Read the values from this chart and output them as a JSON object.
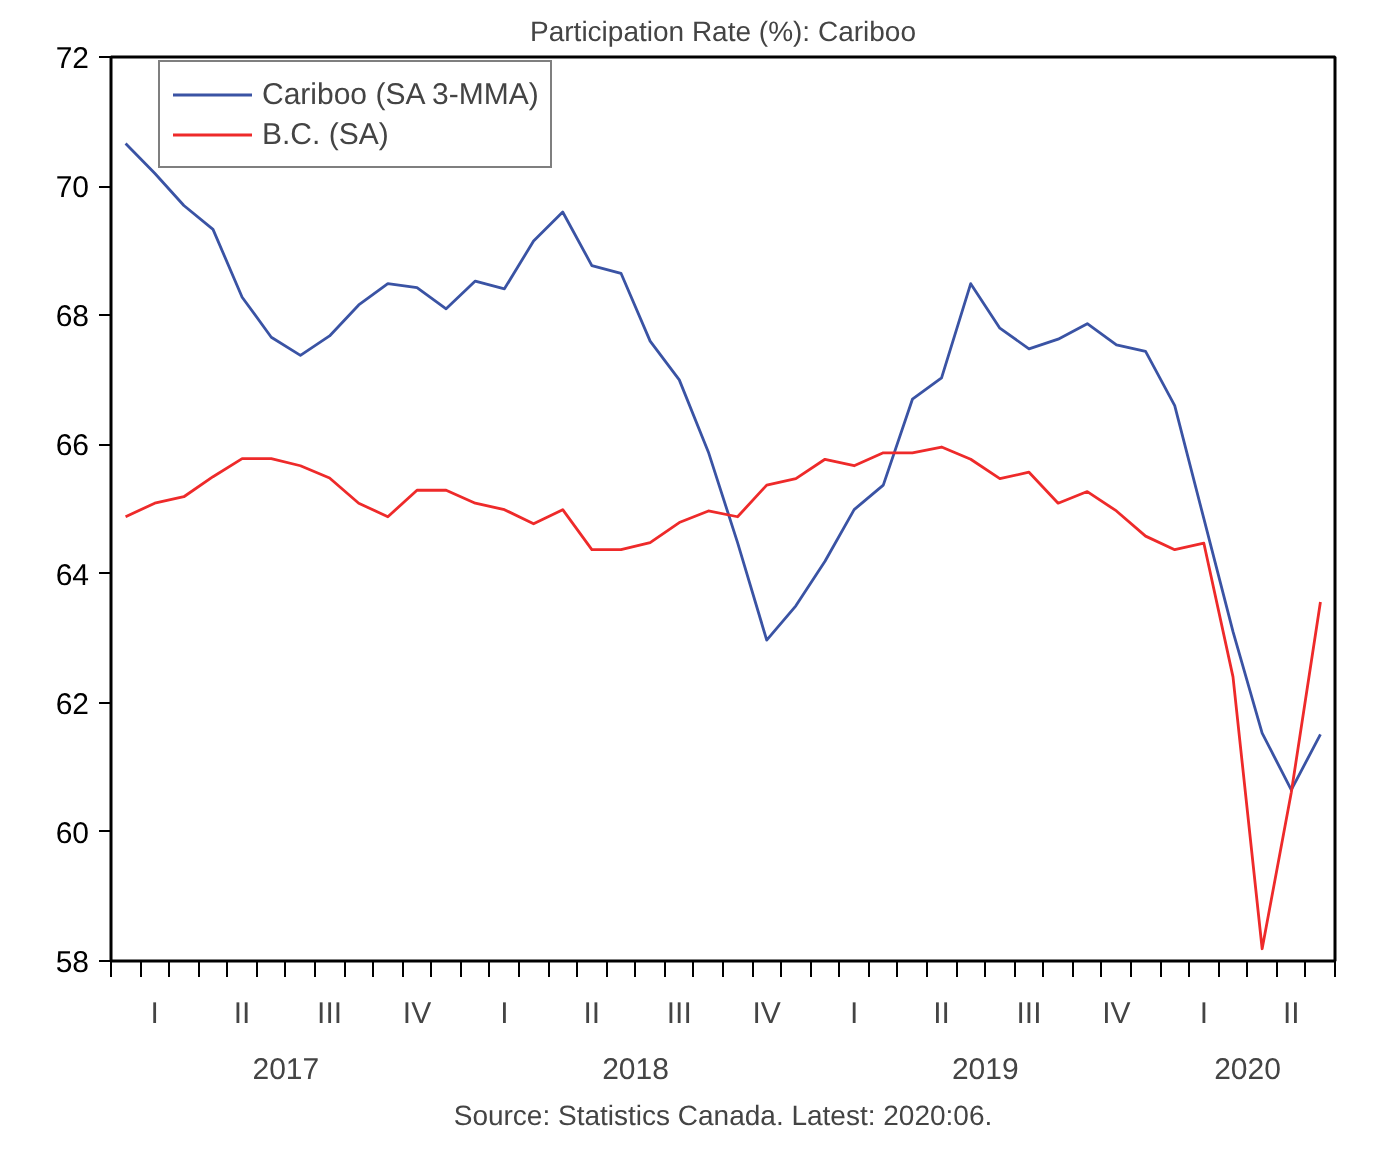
{
  "chart_data": {
    "type": "line",
    "title": "Participation Rate (%): Cariboo",
    "categories": [
      null,
      "I",
      null,
      null,
      "II",
      null,
      null,
      "III",
      null,
      null,
      "IV",
      null,
      null,
      "I",
      null,
      null,
      "II",
      null,
      null,
      "III",
      null,
      null,
      "IV",
      null,
      null,
      "I",
      null,
      null,
      "II",
      null,
      null,
      "III",
      null,
      null,
      "IV",
      null,
      null,
      "I",
      null,
      null,
      "II",
      null
    ],
    "series": [
      {
        "name": "Cariboo (SA 3-MMA)",
        "color": "#3a53a4",
        "values": [
          70.66,
          70.2,
          69.7,
          69.33,
          68.28,
          67.66,
          67.38,
          67.68,
          68.16,
          68.49,
          68.43,
          68.1,
          68.53,
          68.41,
          69.15,
          69.6,
          68.77,
          68.65,
          67.6,
          67.0,
          65.88,
          64.48,
          62.97,
          63.5,
          64.19,
          64.99,
          65.37,
          66.7,
          67.03,
          68.49,
          67.8,
          67.48,
          67.63,
          67.87,
          67.54,
          67.44,
          66.6,
          64.85,
          63.1,
          61.53,
          60.65,
          61.51
        ]
      },
      {
        "name": "B.C. (SA)",
        "color": "#ee2a2a",
        "values": [
          64.88,
          65.09,
          65.19,
          65.5,
          65.78,
          65.78,
          65.67,
          65.48,
          65.09,
          64.88,
          65.29,
          65.29,
          65.09,
          64.99,
          64.77,
          64.99,
          64.37,
          64.37,
          64.48,
          64.79,
          64.97,
          64.88,
          65.37,
          65.47,
          65.77,
          65.67,
          65.87,
          65.87,
          65.96,
          65.77,
          65.47,
          65.57,
          65.09,
          65.27,
          64.97,
          64.58,
          64.37,
          64.47,
          62.4,
          58.19,
          60.61,
          63.56
        ]
      }
    ],
    "ylim": [
      58,
      72
    ],
    "yticks": [
      58,
      60,
      62,
      64,
      66,
      68,
      70,
      72
    ],
    "grid": false,
    "legend": "top left",
    "marker": "none",
    "line_style": "solid",
    "annotations": [
      "2017",
      "2018",
      "2019",
      "2020",
      "Source: Statistics Canada. Latest: 2020:06."
    ]
  }
}
